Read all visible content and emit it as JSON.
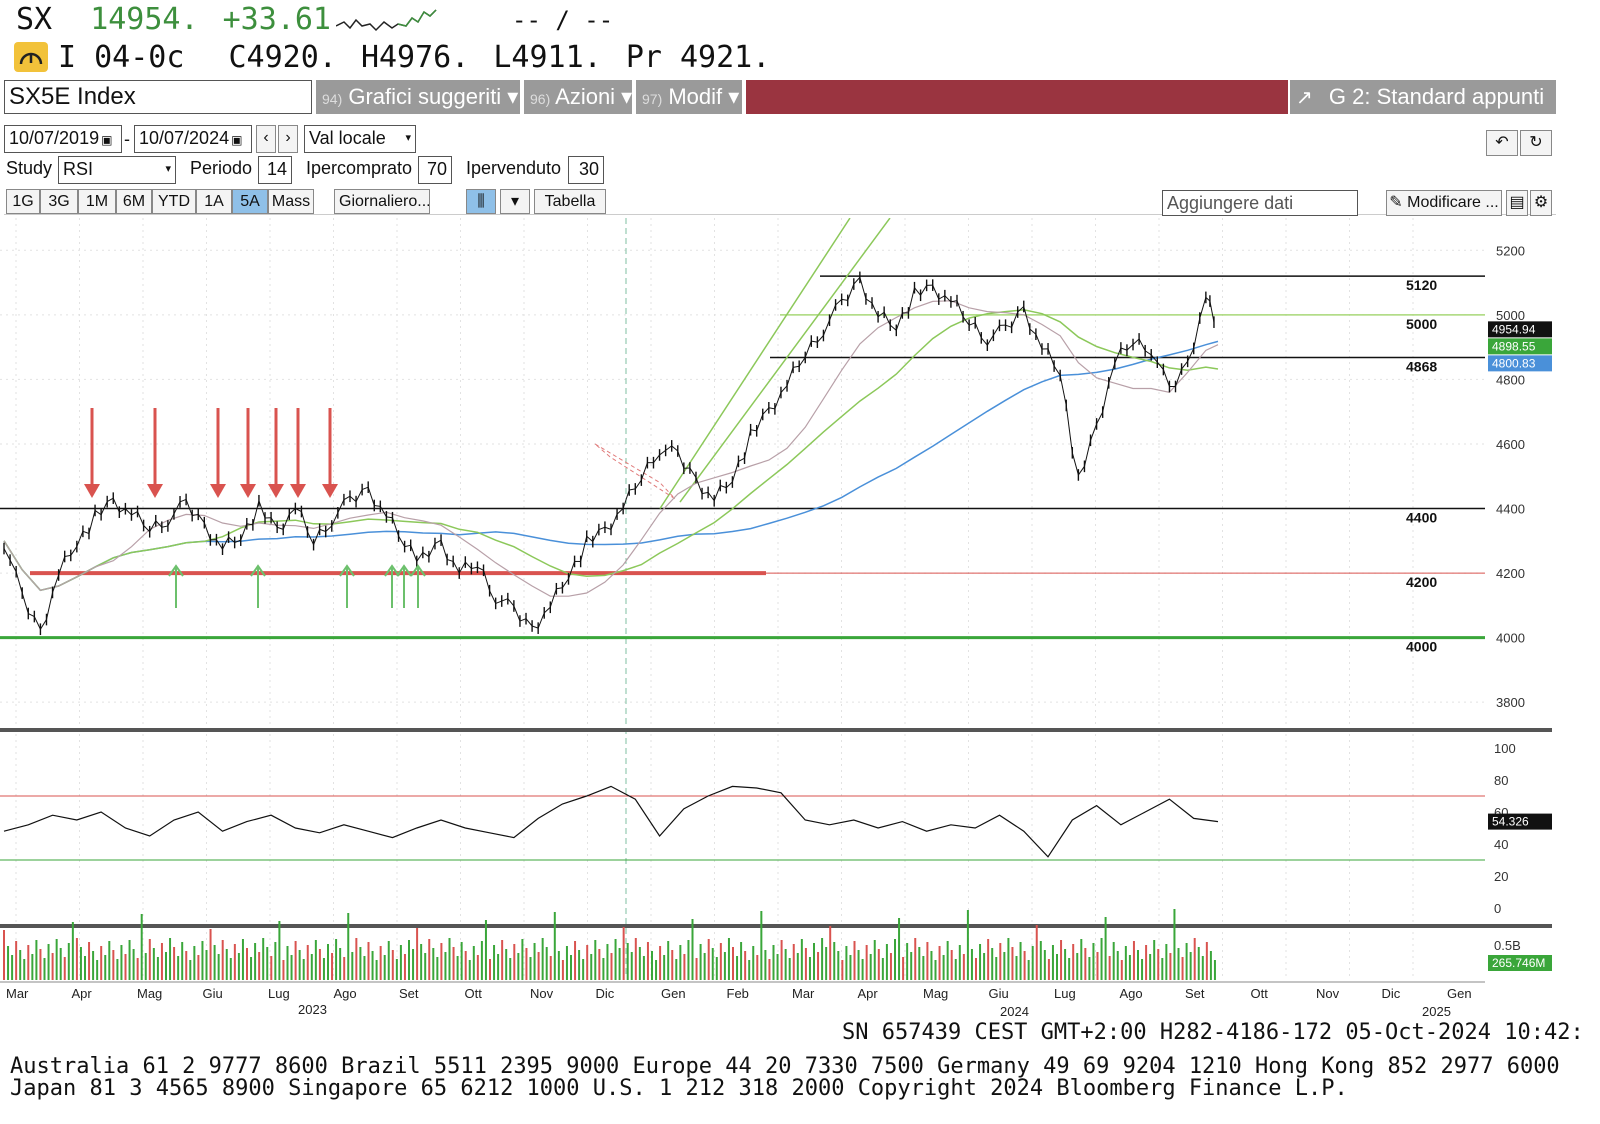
{
  "quote": {
    "ticker": "SX",
    "last": "14954.",
    "change": "+33.61",
    "bid_ask": "-- / --",
    "time": "I 04-0c",
    "open": "C4920.",
    "high": "H4976.",
    "low": "L4911.",
    "prev": "Pr  4921."
  },
  "toolbar": {
    "security": "SX5E Index",
    "menu1_num": "94)",
    "menu1": "Grafici suggeriti ▾",
    "menu2_num": "96)",
    "menu2": "Azioni ▾",
    "menu3_num": "97)",
    "menu3": "Modif ▾",
    "template": "G 2: Standard appunti",
    "start_date": "10/07/2019",
    "end_date": "10/07/2024",
    "currency": "Val locale",
    "study_label": "Study",
    "study": "RSI",
    "period_label": "Periodo",
    "period": "14",
    "overbought_label": "Ipercomprato",
    "overbought": "70",
    "oversold_label": "Ipervenduto",
    "oversold": "30",
    "ranges": [
      "1G",
      "3G",
      "1M",
      "6M",
      "YTD",
      "1A",
      "5A",
      "Mass"
    ],
    "active_range": "5A",
    "frequency": "Giornaliero...",
    "table": "Tabella",
    "add_data": "Aggiungere dati",
    "edit": "Modificare ..."
  },
  "chart_data": {
    "type": "line",
    "title": "SX5E Index",
    "x_months": [
      "Mar",
      "Apr",
      "Mag",
      "Giu",
      "Lug",
      "Ago",
      "Set",
      "Ott",
      "Nov",
      "Dic",
      "Gen",
      "Feb",
      "Mar",
      "Apr",
      "Mag",
      "Giu",
      "Lug",
      "Ago",
      "Set",
      "Ott",
      "Nov",
      "Dic",
      "Gen"
    ],
    "x_years": [
      "2023",
      "2024",
      "2025"
    ],
    "price_axis": [
      "5200",
      "5000",
      "4800",
      "4600",
      "4400",
      "4200",
      "4000",
      "3800"
    ],
    "ylim": [
      3720,
      5300
    ],
    "levels": [
      {
        "label": "5120",
        "value": 5120
      },
      {
        "label": "5000",
        "value": 5000
      },
      {
        "label": "4868",
        "value": 4868
      },
      {
        "label": "4400",
        "value": 4400
      },
      {
        "label": "4200",
        "value": 4200
      },
      {
        "label": "4000",
        "value": 4000
      }
    ],
    "price_tags": [
      "4954.94",
      "4898.55",
      "4800.83"
    ],
    "price_series": [
      [
        0,
        4300
      ],
      [
        3,
        4120
      ],
      [
        6,
        4020
      ],
      [
        9,
        4200
      ],
      [
        12,
        4300
      ],
      [
        15,
        4370
      ],
      [
        18,
        4420
      ],
      [
        21,
        4380
      ],
      [
        24,
        4340
      ],
      [
        27,
        4370
      ],
      [
        30,
        4410
      ],
      [
        33,
        4350
      ],
      [
        36,
        4280
      ],
      [
        39,
        4320
      ],
      [
        42,
        4400
      ],
      [
        45,
        4330
      ],
      [
        48,
        4400
      ],
      [
        51,
        4300
      ],
      [
        54,
        4370
      ],
      [
        57,
        4420
      ],
      [
        60,
        4460
      ],
      [
        63,
        4380
      ],
      [
        66,
        4300
      ],
      [
        69,
        4240
      ],
      [
        72,
        4290
      ],
      [
        75,
        4200
      ],
      [
        78,
        4230
      ],
      [
        81,
        4130
      ],
      [
        84,
        4080
      ],
      [
        87,
        4030
      ],
      [
        90,
        4100
      ],
      [
        93,
        4200
      ],
      [
        96,
        4290
      ],
      [
        99,
        4330
      ],
      [
        102,
        4400
      ],
      [
        105,
        4500
      ],
      [
        108,
        4590
      ],
      [
        111,
        4560
      ],
      [
        114,
        4490
      ],
      [
        117,
        4430
      ],
      [
        120,
        4500
      ],
      [
        123,
        4620
      ],
      [
        126,
        4700
      ],
      [
        129,
        4780
      ],
      [
        132,
        4880
      ],
      [
        135,
        4960
      ],
      [
        138,
        5030
      ],
      [
        141,
        5110
      ],
      [
        144,
        5000
      ],
      [
        147,
        4970
      ],
      [
        150,
        5060
      ],
      [
        153,
        5080
      ],
      [
        156,
        5040
      ],
      [
        159,
        4980
      ],
      [
        162,
        4930
      ],
      [
        165,
        4950
      ],
      [
        168,
        5020
      ],
      [
        171,
        4900
      ],
      [
        174,
        4830
      ],
      [
        177,
        4480
      ],
      [
        180,
        4650
      ],
      [
        183,
        4850
      ],
      [
        186,
        4920
      ],
      [
        189,
        4900
      ],
      [
        192,
        4760
      ],
      [
        195,
        4850
      ],
      [
        198,
        5060
      ],
      [
        200,
        4954
      ]
    ],
    "rsi_axis": [
      "100",
      "80",
      "60",
      "40",
      "20",
      "0"
    ],
    "rsi_last": "54.326",
    "rsi_overbought": 70,
    "rsi_oversold": 30,
    "rsi_series": [
      [
        0,
        48
      ],
      [
        4,
        52
      ],
      [
        8,
        58
      ],
      [
        12,
        55
      ],
      [
        16,
        60
      ],
      [
        20,
        50
      ],
      [
        24,
        45
      ],
      [
        28,
        55
      ],
      [
        32,
        60
      ],
      [
        36,
        48
      ],
      [
        40,
        54
      ],
      [
        44,
        58
      ],
      [
        48,
        50
      ],
      [
        52,
        47
      ],
      [
        56,
        52
      ],
      [
        60,
        48
      ],
      [
        64,
        44
      ],
      [
        68,
        50
      ],
      [
        72,
        55
      ],
      [
        76,
        50
      ],
      [
        80,
        47
      ],
      [
        84,
        44
      ],
      [
        88,
        56
      ],
      [
        92,
        65
      ],
      [
        96,
        70
      ],
      [
        100,
        76
      ],
      [
        104,
        68
      ],
      [
        108,
        45
      ],
      [
        112,
        62
      ],
      [
        116,
        70
      ],
      [
        120,
        76
      ],
      [
        124,
        75
      ],
      [
        128,
        72
      ],
      [
        132,
        55
      ],
      [
        136,
        52
      ],
      [
        140,
        55
      ],
      [
        144,
        50
      ],
      [
        148,
        54
      ],
      [
        152,
        48
      ],
      [
        156,
        52
      ],
      [
        160,
        50
      ],
      [
        164,
        58
      ],
      [
        168,
        48
      ],
      [
        172,
        32
      ],
      [
        176,
        55
      ],
      [
        180,
        64
      ],
      [
        184,
        52
      ],
      [
        188,
        60
      ],
      [
        192,
        68
      ],
      [
        196,
        56
      ],
      [
        200,
        54
      ]
    ],
    "volume_max_label": "0.5B",
    "volume_last": "265.746M"
  },
  "footer": {
    "session": "SN 657439 CEST  GMT+2:00 H282-4186-172 05-Oct-2024 10:42:",
    "line1": "Australia 61 2 9777 8600 Brazil 5511 2395 9000 Europe 44 20 7330 7500 Germany 49 69 9204 1210 Hong Kong 852 2977 6000",
    "line2": "Japan 81 3 4565 8900       Singapore 65 6212 1000       U.S. 1 212 318 2000         Copyright 2024 Bloomberg Finance L.P."
  }
}
